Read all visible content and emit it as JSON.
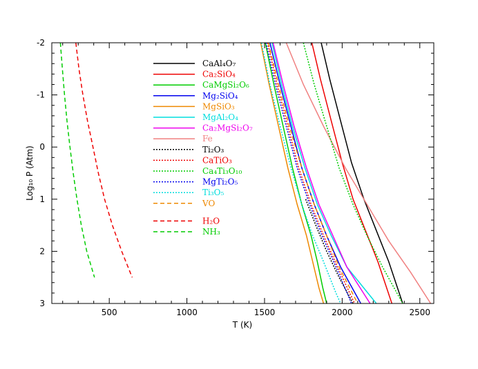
{
  "chart_data": {
    "type": "line",
    "xlabel": "T (K)",
    "ylabel": "Log₁₀ P (Atm)",
    "xlim": [
      130,
      2590
    ],
    "ylim": [
      -2,
      3
    ],
    "y_inverted": true,
    "x_ticks": [
      500,
      1000,
      1500,
      2000,
      2500
    ],
    "y_ticks": [
      -2,
      -1,
      0,
      1,
      2,
      3
    ],
    "x_tick_labels": [
      "500",
      "1000",
      "1500",
      "2000",
      "2500"
    ],
    "y_tick_labels": [
      "-2",
      "-1",
      "0",
      "1",
      "2",
      "3"
    ],
    "grid": false,
    "legend_position": "upper-center",
    "series": [
      {
        "name": "CaAl₄O₇",
        "color": "#000000",
        "dash": "solid",
        "points": [
          [
            1865,
            -2
          ],
          [
            1920,
            -1.3
          ],
          [
            1990,
            -0.5
          ],
          [
            2060,
            0.3
          ],
          [
            2140,
            1.0
          ],
          [
            2220,
            1.6
          ],
          [
            2300,
            2.2
          ],
          [
            2390,
            3
          ]
        ]
      },
      {
        "name": "Ca₂SiO₄",
        "color": "#ee0000",
        "dash": "solid",
        "points": [
          [
            1805,
            -2
          ],
          [
            1860,
            -1.3
          ],
          [
            1930,
            -0.5
          ],
          [
            2000,
            0.3
          ],
          [
            2070,
            1.0
          ],
          [
            2150,
            1.6
          ],
          [
            2230,
            2.2
          ],
          [
            2320,
            3
          ]
        ]
      },
      {
        "name": "CaMgSi₂O₆",
        "color": "#00cc00",
        "dash": "solid",
        "points": [
          [
            1505,
            -2
          ],
          [
            1560,
            -1.2
          ],
          [
            1620,
            -0.4
          ],
          [
            1680,
            0.4
          ],
          [
            1740,
            1.1
          ],
          [
            1800,
            1.7
          ],
          [
            1840,
            2.2
          ],
          [
            1875,
            2.7
          ],
          [
            1900,
            3
          ]
        ]
      },
      {
        "name": "Mg₂SiO₄",
        "color": "#0000ee",
        "dash": "solid",
        "points": [
          [
            1535,
            -2
          ],
          [
            1600,
            -1.2
          ],
          [
            1670,
            -0.4
          ],
          [
            1740,
            0.4
          ],
          [
            1820,
            1.1
          ],
          [
            1900,
            1.7
          ],
          [
            1990,
            2.3
          ],
          [
            2120,
            3
          ]
        ]
      },
      {
        "name": "MgSiO₃",
        "color": "#ee8800",
        "dash": "solid",
        "points": [
          [
            1475,
            -2
          ],
          [
            1530,
            -1.2
          ],
          [
            1590,
            -0.4
          ],
          [
            1650,
            0.4
          ],
          [
            1710,
            1.1
          ],
          [
            1770,
            1.7
          ],
          [
            1810,
            2.2
          ],
          [
            1850,
            2.7
          ],
          [
            1880,
            3
          ]
        ]
      },
      {
        "name": "MgAl₂O₄",
        "color": "#00dddd",
        "dash": "solid",
        "points": [
          [
            1548,
            -2
          ],
          [
            1610,
            -1.2
          ],
          [
            1680,
            -0.4
          ],
          [
            1760,
            0.4
          ],
          [
            1840,
            1.1
          ],
          [
            1930,
            1.7
          ],
          [
            2030,
            2.3
          ],
          [
            2220,
            3
          ]
        ]
      },
      {
        "name": "Ca₂MgSi₂O₇",
        "color": "#ee00ee",
        "dash": "solid",
        "points": [
          [
            1555,
            -2
          ],
          [
            1620,
            -1.2
          ],
          [
            1690,
            -0.4
          ],
          [
            1770,
            0.4
          ],
          [
            1850,
            1.1
          ],
          [
            1940,
            1.7
          ],
          [
            2030,
            2.3
          ],
          [
            2180,
            3
          ]
        ]
      },
      {
        "name": "Fe",
        "color": "#f08080",
        "dash": "solid",
        "points": [
          [
            1640,
            -2
          ],
          [
            1750,
            -1.2
          ],
          [
            1880,
            -0.4
          ],
          [
            2020,
            0.4
          ],
          [
            2160,
            1.1
          ],
          [
            2300,
            1.8
          ],
          [
            2440,
            2.4
          ],
          [
            2570,
            3
          ]
        ]
      },
      {
        "name": "Ti₂O₃",
        "color": "#000000",
        "dash": "dotted",
        "points": [
          [
            1765,
            1.0
          ],
          [
            1830,
            1.5
          ],
          [
            1900,
            2.0
          ],
          [
            1980,
            2.5
          ],
          [
            2070,
            3
          ]
        ]
      },
      {
        "name": "CaTiO₃",
        "color": "#ee0000",
        "dash": "dotted",
        "points": [
          [
            1520,
            -2
          ],
          [
            1580,
            -1.2
          ],
          [
            1650,
            -0.4
          ],
          [
            1720,
            0.4
          ],
          [
            1800,
            1.1
          ],
          [
            1880,
            1.7
          ],
          [
            1970,
            2.3
          ],
          [
            2080,
            3
          ]
        ]
      },
      {
        "name": "Ca₄Ti₃O₁₀",
        "color": "#00cc00",
        "dash": "dotted",
        "points": [
          [
            1750,
            -2
          ],
          [
            1820,
            -1.2
          ],
          [
            1900,
            -0.4
          ],
          [
            1980,
            0.4
          ],
          [
            2070,
            1.1
          ],
          [
            2160,
            1.7
          ],
          [
            2260,
            2.3
          ],
          [
            2390,
            3
          ]
        ]
      },
      {
        "name": "MgTi₂O₅",
        "color": "#0000ee",
        "dash": "dotted",
        "points": [
          [
            1510,
            -2
          ],
          [
            1570,
            -1.2
          ],
          [
            1640,
            -0.4
          ],
          [
            1710,
            0.4
          ],
          [
            1790,
            1.1
          ],
          [
            1870,
            1.7
          ],
          [
            1960,
            2.3
          ],
          [
            2060,
            3
          ]
        ]
      },
      {
        "name": "Ti₃O₅",
        "color": "#00dddd",
        "dash": "dotted",
        "points": [
          [
            1480,
            -2
          ],
          [
            1535,
            -1.2
          ],
          [
            1600,
            -0.4
          ],
          [
            1670,
            0.4
          ],
          [
            1740,
            1.1
          ],
          [
            1810,
            1.7
          ],
          [
            1880,
            2.2
          ],
          [
            1960,
            2.8
          ],
          [
            1990,
            3
          ]
        ]
      },
      {
        "name": "VO",
        "color": "#ee8800",
        "dash": "dashed",
        "points": [
          [
            1525,
            -2
          ],
          [
            1590,
            -1.2
          ],
          [
            1660,
            -0.4
          ],
          [
            1740,
            0.4
          ],
          [
            1820,
            1.1
          ],
          [
            1900,
            1.7
          ],
          [
            1980,
            2.3
          ],
          [
            2100,
            3
          ]
        ]
      },
      {
        "name": "H₂O",
        "color": "#ee0000",
        "dash": "dashed",
        "points": [
          [
            285,
            -2
          ],
          [
            305,
            -1.5
          ],
          [
            330,
            -1.0
          ],
          [
            360,
            -0.5
          ],
          [
            395,
            0.0
          ],
          [
            430,
            0.5
          ],
          [
            470,
            1.0
          ],
          [
            520,
            1.5
          ],
          [
            580,
            2.0
          ],
          [
            648,
            2.5
          ]
        ]
      },
      {
        "name": "NH₃",
        "color": "#00cc00",
        "dash": "dashed",
        "points": [
          [
            185,
            -2
          ],
          [
            198,
            -1.5
          ],
          [
            212,
            -1.0
          ],
          [
            228,
            -0.5
          ],
          [
            247,
            0.0
          ],
          [
            268,
            0.5
          ],
          [
            292,
            1.0
          ],
          [
            320,
            1.5
          ],
          [
            355,
            2.0
          ],
          [
            405,
            2.5
          ]
        ]
      }
    ]
  }
}
